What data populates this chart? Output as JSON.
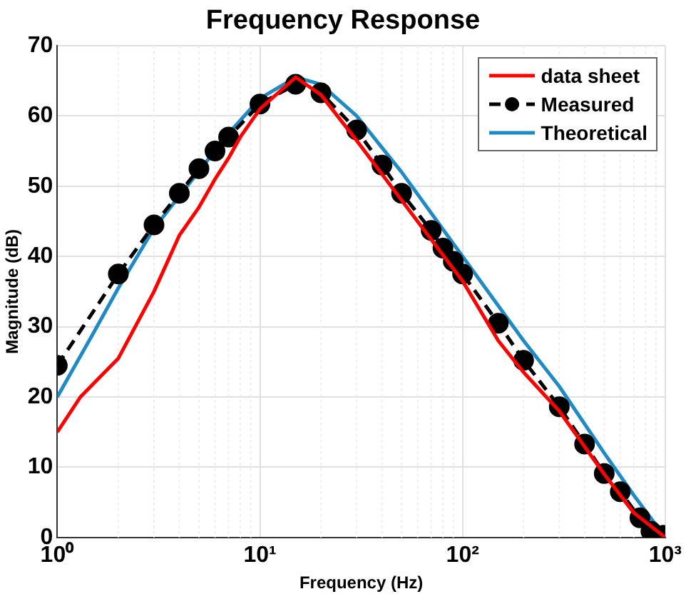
{
  "chart_data": {
    "type": "line",
    "title": "Frequency Response",
    "xlabel": "Frequency (Hz)",
    "ylabel": "Magnitude (dB)",
    "log": "x",
    "grid": true,
    "legend": "top right",
    "xlim": [
      1,
      1000
    ],
    "xticks": [
      {
        "value": 1,
        "label": "10⁰"
      },
      {
        "value": 10,
        "label": "10¹"
      },
      {
        "value": 100,
        "label": "10²"
      },
      {
        "value": 1000,
        "label": "10³"
      }
    ],
    "ylim": [
      0,
      70
    ],
    "yticks": [
      0,
      10,
      20,
      30,
      40,
      50,
      60,
      70
    ],
    "series": [
      {
        "name": "data sheet",
        "color": "#ff0000",
        "x": [
          1,
          1.3,
          2,
          3,
          4,
          5,
          6,
          7,
          8,
          10,
          15,
          20,
          30,
          50,
          100,
          150,
          200,
          300,
          500,
          700,
          1000
        ],
        "values": [
          15,
          20,
          25.5,
          35,
          43,
          47,
          51,
          54,
          57,
          61,
          65.5,
          63,
          56.5,
          48,
          36.5,
          28,
          23.5,
          18,
          9,
          3.5,
          0
        ]
      },
      {
        "name": "Measured",
        "color": "#000000",
        "marker": "circle",
        "line_style": "dashed",
        "x": [
          1,
          2,
          3,
          4,
          5,
          6,
          7,
          10,
          15,
          20,
          30,
          40,
          50,
          70,
          80,
          90,
          100,
          150,
          200,
          300,
          400,
          500,
          600,
          750,
          850,
          980
        ],
        "values": [
          24.5,
          37.5,
          44.5,
          49,
          52.5,
          55,
          57,
          61.7,
          64.5,
          63.3,
          58,
          53,
          49,
          43.7,
          41.2,
          39.3,
          37.5,
          30.5,
          25.2,
          18.6,
          13.3,
          9.1,
          6.5,
          2.8,
          0.9,
          0.3
        ]
      },
      {
        "name": "Theoretical",
        "color": "#1f8ac4",
        "x": [
          1,
          1.5,
          2,
          3,
          7,
          10,
          15,
          20,
          30,
          50,
          100,
          200,
          300,
          500,
          700,
          1000
        ],
        "values": [
          20,
          29,
          35.5,
          44,
          57.5,
          62.5,
          65.5,
          64.5,
          60,
          52,
          40,
          28,
          21.5,
          12,
          6,
          0
        ]
      }
    ]
  }
}
